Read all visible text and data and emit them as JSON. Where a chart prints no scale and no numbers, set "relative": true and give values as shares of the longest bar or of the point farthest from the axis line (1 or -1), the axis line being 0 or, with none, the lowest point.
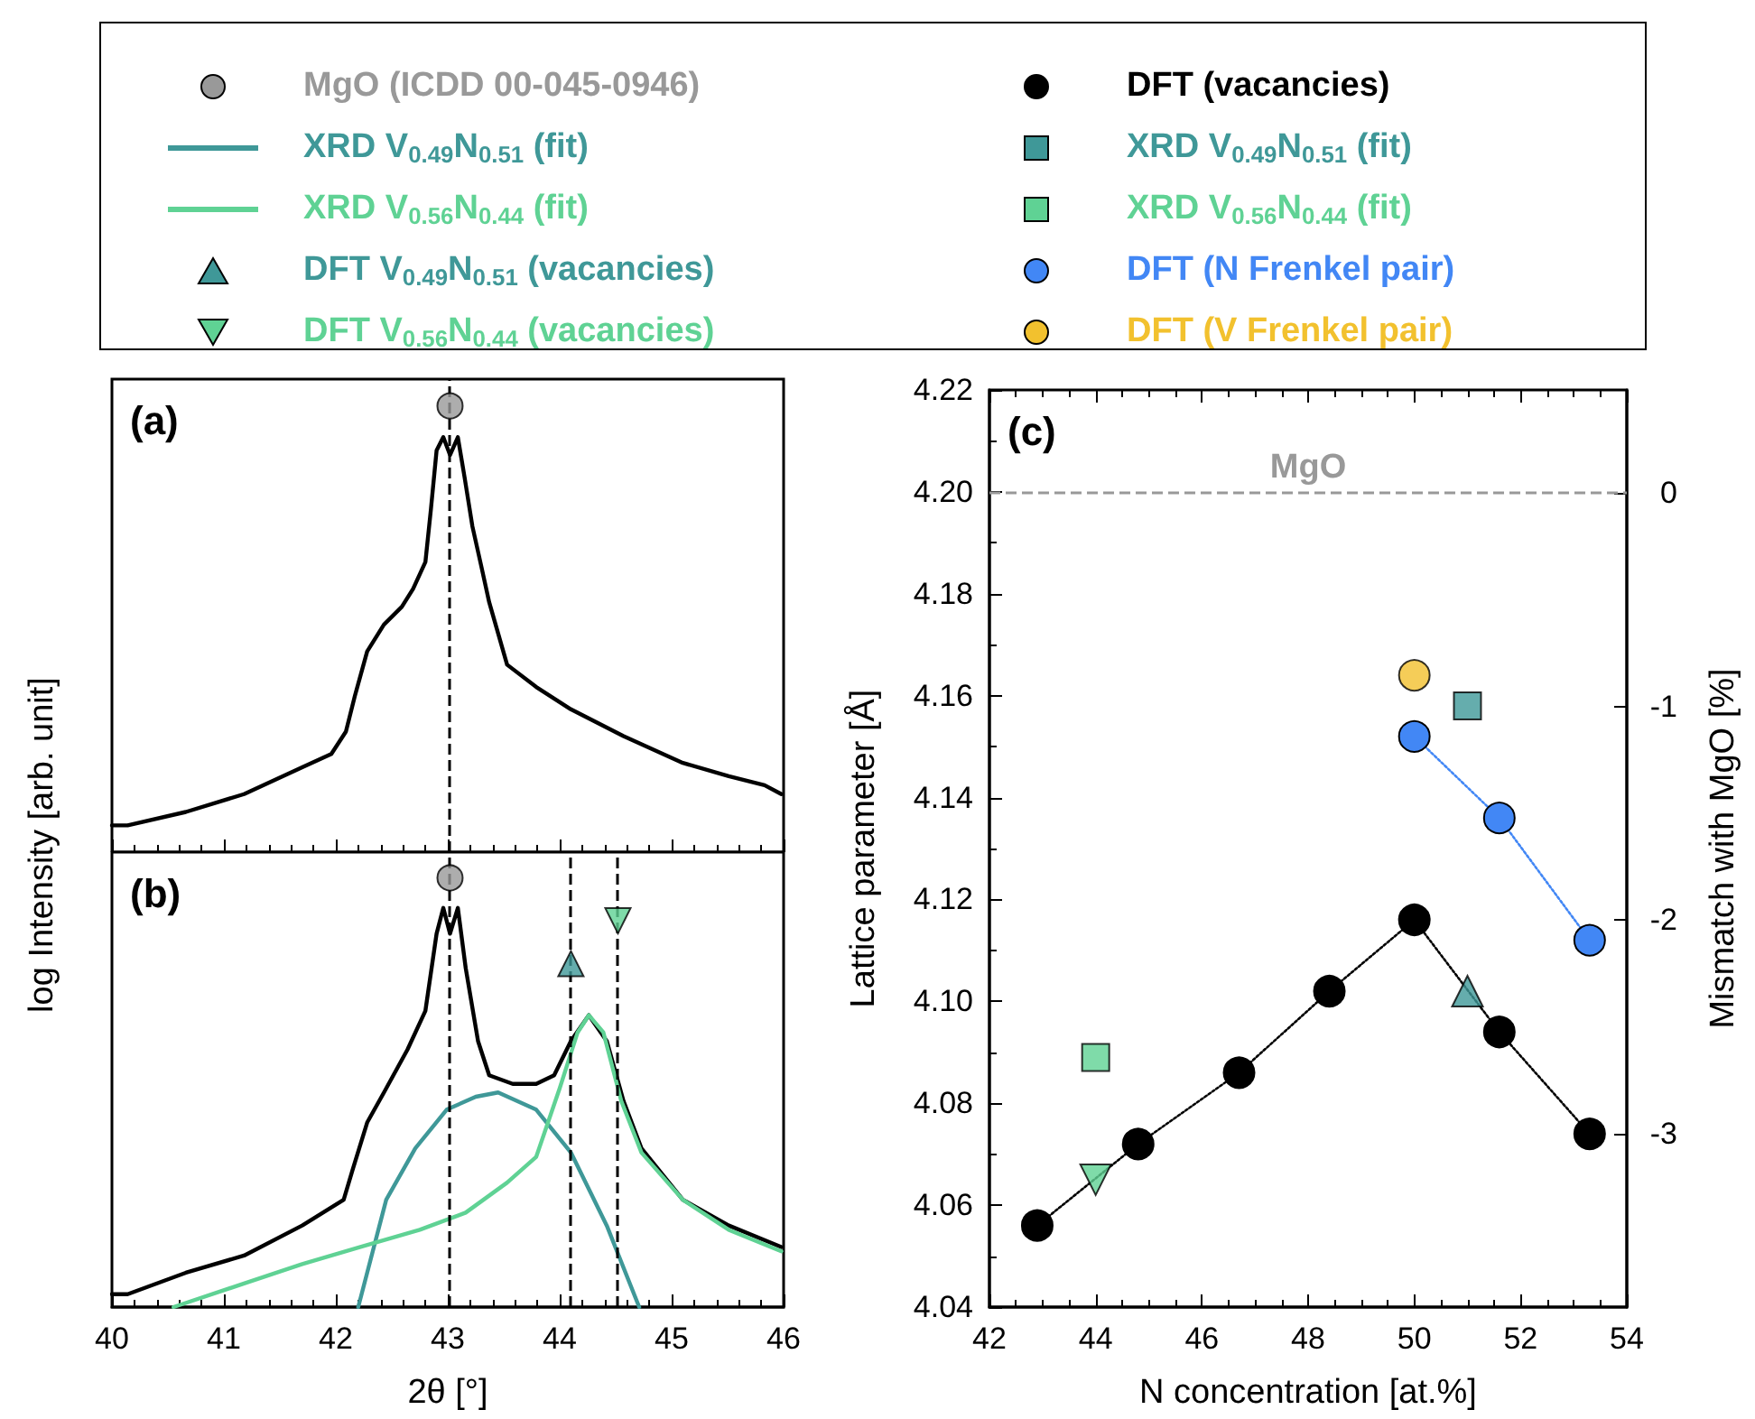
{
  "chart_data": [
    {
      "type": "line",
      "relative": true,
      "ylabel": "log Intensity [arb. unit]",
      "annotations": [
        "(a)"
      ],
      "xlim": [
        40,
        46
      ],
      "xticks": [
        40,
        41,
        42,
        43,
        44,
        45,
        46
      ],
      "tick_labels": false,
      "legend": "top",
      "ref_lines": [
        {
          "axis": "x",
          "value": 43.02,
          "color": "#000000",
          "line_style": "dashed"
        }
      ],
      "series": [
        {
          "marker": "none",
          "color": "#000000",
          "x": [
            40.0,
            40.14,
            40.66,
            41.18,
            41.7,
            41.96,
            42.09,
            42.17,
            42.28,
            42.43,
            42.59,
            42.69,
            42.8,
            42.85,
            42.9,
            42.96,
            43.02,
            43.09,
            43.15,
            43.22,
            43.3,
            43.37,
            43.53,
            43.79,
            44.1,
            44.57,
            45.1,
            45.51,
            45.83,
            45.98
          ],
          "values": [
            0.06,
            0.06,
            0.09,
            0.13,
            0.19,
            0.22,
            0.27,
            0.35,
            0.45,
            0.51,
            0.55,
            0.59,
            0.65,
            0.77,
            0.9,
            0.93,
            0.89,
            0.93,
            0.84,
            0.73,
            0.64,
            0.56,
            0.42,
            0.37,
            0.32,
            0.26,
            0.2,
            0.17,
            0.15,
            0.13
          ]
        },
        {
          "name": "MgO (ICDD 00-045-0946)",
          "type": "scatter",
          "marker": "circle",
          "color": "#999999",
          "x": [
            43.02
          ],
          "values": [
            1
          ]
        }
      ]
    },
    {
      "type": "line",
      "relative": true,
      "xlabel": "2θ [°]",
      "annotations": [
        "(b)"
      ],
      "xlim": [
        40,
        46
      ],
      "xticks": [
        40,
        41,
        42,
        43,
        44,
        45,
        46
      ],
      "tick_labels": "x",
      "legend": "top",
      "ref_lines": [
        {
          "axis": "x",
          "value": 43.02,
          "color": "#000000",
          "line_style": "dashed"
        },
        {
          "axis": "x",
          "value": 44.1,
          "color": "#000000",
          "line_style": "dashed"
        },
        {
          "axis": "x",
          "value": 44.52,
          "color": "#000000",
          "line_style": "dashed"
        }
      ],
      "series": [
        {
          "marker": "none",
          "color": "#000000",
          "x": [
            40.0,
            40.14,
            40.66,
            41.18,
            41.7,
            42.07,
            42.15,
            42.28,
            42.43,
            42.64,
            42.8,
            42.9,
            42.96,
            43.02,
            43.09,
            43.16,
            43.27,
            43.37,
            43.58,
            43.79,
            43.95,
            44.1,
            44.26,
            44.42,
            44.57,
            44.73,
            45.1,
            45.51,
            45.98
          ],
          "values": [
            0.03,
            0.03,
            0.08,
            0.12,
            0.19,
            0.25,
            0.32,
            0.43,
            0.5,
            0.6,
            0.69,
            0.87,
            0.93,
            0.87,
            0.93,
            0.79,
            0.62,
            0.54,
            0.52,
            0.52,
            0.54,
            0.62,
            0.68,
            0.62,
            0.48,
            0.37,
            0.25,
            0.19,
            0.14
          ]
        },
        {
          "name": "MgO (ICDD 00-045-0946)",
          "type": "scatter",
          "marker": "circle",
          "color": "#999999",
          "x": [
            43.02
          ],
          "values": [
            1
          ]
        },
        {
          "name": "XRD V$_{0.49}$N$_{0.51}$ (fit)",
          "marker": "none",
          "color": "#3f9898",
          "x": [
            42.2,
            42.45,
            42.71,
            42.99,
            43.25,
            43.45,
            43.79,
            44.1,
            44.42,
            44.71
          ],
          "values": [
            0,
            0.25,
            0.37,
            0.46,
            0.49,
            0.5,
            0.46,
            0.36,
            0.19,
            0
          ]
        },
        {
          "name": "XRD V$_{0.56}$N$_{0.44}$ (fit)",
          "marker": "none",
          "color": "#5fd294",
          "x": [
            40.55,
            41.18,
            41.7,
            42.22,
            42.75,
            43.16,
            43.53,
            43.79,
            44.0,
            44.16,
            44.26,
            44.39,
            44.55,
            44.73,
            45.1,
            45.51,
            45.98
          ],
          "values": [
            0,
            0.055,
            0.1,
            0.14,
            0.18,
            0.22,
            0.29,
            0.35,
            0.51,
            0.64,
            0.68,
            0.64,
            0.48,
            0.36,
            0.25,
            0.18,
            0.13
          ]
        },
        {
          "name": "DFT V$_{0.49}$N$_{0.51}$ (vacancies)",
          "type": "scatter",
          "marker": "triangle",
          "color": "#3f9898",
          "x": [
            44.1
          ],
          "values": [
            0.8
          ]
        },
        {
          "name": "DFT V$_{0.56}$N$_{0.44}$ (vacancies)",
          "type": "scatter",
          "marker": "triangle-down",
          "color": "#5fd294",
          "x": [
            44.52
          ],
          "values": [
            0.9
          ]
        }
      ]
    },
    {
      "type": "scatter",
      "xlabel": "N concentration [at.%]",
      "ylabel": "Lattice parameter [Å]",
      "y2label": "Mismatch with MgO [%]",
      "annotations": [
        "(c)"
      ],
      "legend": "top",
      "xlim": [
        42,
        54
      ],
      "xticks": [
        42,
        44,
        46,
        48,
        50,
        52,
        54
      ],
      "ylim": [
        4.04,
        4.22
      ],
      "yticks": [
        4.04,
        4.06,
        4.08,
        {
          "value": 4.1,
          "label": "4.10"
        },
        4.12,
        4.14,
        4.16,
        4.18,
        {
          "value": 4.2,
          "label": "4.20"
        },
        4.22
      ],
      "y2lim": [
        -3.81,
        0.48
      ],
      "y2ticks": [
        0,
        -1,
        -2,
        -3
      ],
      "ref_lines": [
        {
          "axis": "y",
          "value": 4.2,
          "label": "MgO",
          "color": "#999999",
          "line_style": "dashed"
        }
      ],
      "series": [
        {
          "name": "DFT (vacancies)",
          "type": "line",
          "marker": "circle",
          "line_style": "dotted",
          "color": "#000000",
          "x": [
            42.9,
            44.8,
            46.7,
            48.4,
            50,
            51.6,
            53.3
          ],
          "values": [
            4.056,
            4.072,
            4.086,
            4.102,
            4.116,
            4.094,
            4.074
          ]
        },
        {
          "name": "XRD V$_{0.49}$N$_{0.51}$ (fit)",
          "marker": "square",
          "color": "#3f9898",
          "x": [
            51
          ],
          "values": [
            4.158
          ]
        },
        {
          "name": "XRD V$_{0.56}$N$_{0.44}$ (fit)",
          "marker": "square",
          "color": "#5fd294",
          "x": [
            44
          ],
          "values": [
            4.089
          ]
        },
        {
          "name": "DFT (N Frenkel pair)",
          "type": "line",
          "marker": "circle",
          "line_style": "dotted",
          "color": "#4287f5",
          "x": [
            50,
            51.6,
            53.3
          ],
          "values": [
            4.152,
            4.136,
            4.112
          ]
        },
        {
          "name": "DFT (V Frenkel pair)",
          "marker": "circle",
          "color": "#f2c12e",
          "x": [
            50
          ],
          "values": [
            4.164
          ]
        },
        {
          "name": "DFT V$_{0.49}$N$_{0.51}$ (vacancies)",
          "marker": "triangle",
          "color": "#3f9898",
          "x": [
            51
          ],
          "values": [
            4.102
          ]
        },
        {
          "name": "DFT V$_{0.56}$N$_{0.44}$ (vacancies)",
          "marker": "triangle-down",
          "color": "#5fd294",
          "x": [
            44
          ],
          "values": [
            4.065
          ]
        }
      ]
    }
  ]
}
